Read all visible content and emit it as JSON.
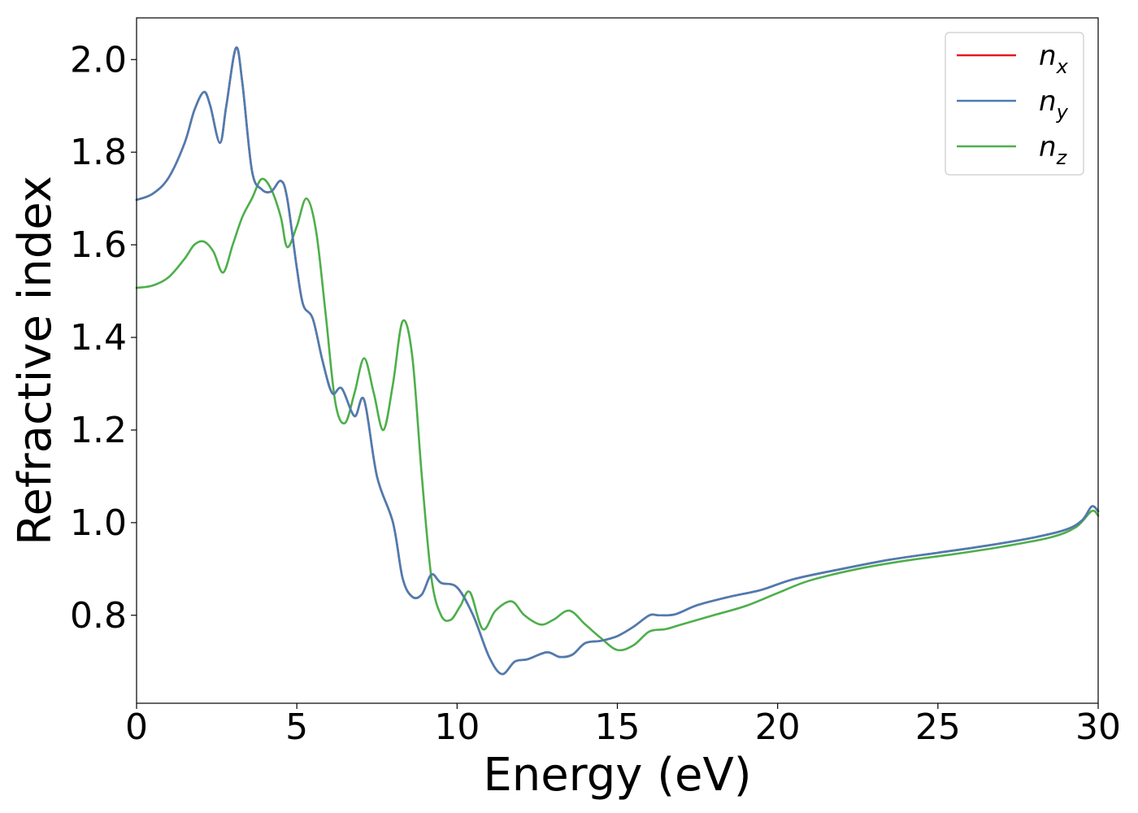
{
  "chart_data": {
    "type": "line",
    "xlabel": "Energy (eV)",
    "ylabel": "Refractive index",
    "xlim": [
      0,
      30
    ],
    "ylim": [
      0.61,
      2.09
    ],
    "xticks": [
      0,
      5,
      10,
      15,
      20,
      25,
      30
    ],
    "yticks": [
      0.8,
      1.0,
      1.2,
      1.4,
      1.6,
      1.8,
      2.0
    ],
    "xtick_labels": [
      "0",
      "5",
      "10",
      "15",
      "20",
      "25",
      "30"
    ],
    "ytick_labels": [
      "0.8",
      "1.0",
      "1.2",
      "1.4",
      "1.6",
      "1.8",
      "2.0"
    ],
    "grid": false,
    "legend_position": "top-right",
    "series": [
      {
        "name": "n_x",
        "label_base": "n",
        "label_sub": "x",
        "color": "#e41a1c",
        "x": [
          0,
          0.5,
          1,
          1.5,
          1.8,
          2.1,
          2.3,
          2.6,
          2.8,
          3.1,
          3.3,
          3.6,
          3.9,
          4.2,
          4.5,
          4.7,
          5.0,
          5.2,
          5.5,
          5.8,
          6.1,
          6.4,
          6.8,
          7.1,
          7.5,
          8.0,
          8.3,
          8.6,
          8.9,
          9.2,
          9.5,
          10.0,
          10.5,
          11.0,
          11.4,
          11.8,
          12.2,
          12.8,
          13.2,
          13.6,
          14.0,
          14.5,
          15.0,
          15.5,
          16.0,
          16.3,
          16.8,
          17.5,
          18.5,
          19.5,
          20.5,
          22.0,
          23.5,
          25.0,
          26.5,
          28.0,
          29.0,
          29.5,
          29.8,
          30.0
        ],
        "y": [
          1.697,
          1.71,
          1.745,
          1.82,
          1.89,
          1.93,
          1.9,
          1.82,
          1.9,
          2.025,
          1.95,
          1.76,
          1.72,
          1.715,
          1.738,
          1.7,
          1.55,
          1.47,
          1.44,
          1.35,
          1.28,
          1.29,
          1.23,
          1.265,
          1.1,
          1.0,
          0.88,
          0.84,
          0.845,
          0.888,
          0.87,
          0.86,
          0.8,
          0.71,
          0.673,
          0.7,
          0.705,
          0.72,
          0.71,
          0.715,
          0.74,
          0.745,
          0.755,
          0.775,
          0.8,
          0.8,
          0.802,
          0.822,
          0.84,
          0.855,
          0.878,
          0.9,
          0.92,
          0.935,
          0.95,
          0.968,
          0.985,
          1.005,
          1.035,
          1.025
        ]
      },
      {
        "name": "n_y",
        "label_base": "n",
        "label_sub": "y",
        "color": "#4a7db3",
        "x": [
          0,
          0.5,
          1,
          1.5,
          1.8,
          2.1,
          2.3,
          2.6,
          2.8,
          3.1,
          3.3,
          3.6,
          3.9,
          4.2,
          4.5,
          4.7,
          5.0,
          5.2,
          5.5,
          5.8,
          6.1,
          6.4,
          6.8,
          7.1,
          7.5,
          8.0,
          8.3,
          8.6,
          8.9,
          9.2,
          9.5,
          10.0,
          10.5,
          11.0,
          11.4,
          11.8,
          12.2,
          12.8,
          13.2,
          13.6,
          14.0,
          14.5,
          15.0,
          15.5,
          16.0,
          16.3,
          16.8,
          17.5,
          18.5,
          19.5,
          20.5,
          22.0,
          23.5,
          25.0,
          26.5,
          28.0,
          29.0,
          29.5,
          29.8,
          30.0
        ],
        "y": [
          1.697,
          1.71,
          1.745,
          1.82,
          1.89,
          1.93,
          1.9,
          1.82,
          1.9,
          2.025,
          1.95,
          1.76,
          1.72,
          1.715,
          1.738,
          1.7,
          1.55,
          1.47,
          1.44,
          1.35,
          1.28,
          1.29,
          1.23,
          1.265,
          1.1,
          1.0,
          0.88,
          0.84,
          0.845,
          0.888,
          0.87,
          0.86,
          0.8,
          0.71,
          0.673,
          0.7,
          0.705,
          0.72,
          0.71,
          0.715,
          0.74,
          0.745,
          0.755,
          0.775,
          0.8,
          0.8,
          0.802,
          0.822,
          0.84,
          0.855,
          0.878,
          0.9,
          0.92,
          0.935,
          0.95,
          0.968,
          0.985,
          1.005,
          1.035,
          1.025
        ]
      },
      {
        "name": "n_z",
        "label_base": "n",
        "label_sub": "z",
        "color": "#4daf4a",
        "x": [
          0,
          0.5,
          1,
          1.5,
          1.8,
          2.1,
          2.4,
          2.7,
          3.0,
          3.3,
          3.6,
          3.9,
          4.2,
          4.5,
          4.7,
          5.0,
          5.3,
          5.6,
          5.9,
          6.2,
          6.5,
          6.8,
          7.1,
          7.4,
          7.7,
          8.0,
          8.3,
          8.6,
          8.9,
          9.2,
          9.5,
          9.8,
          10.1,
          10.4,
          10.8,
          11.2,
          11.7,
          12.1,
          12.6,
          13.0,
          13.5,
          14.0,
          14.5,
          15.0,
          15.5,
          16.0,
          16.5,
          17.0,
          18.0,
          19.0,
          20.0,
          21.0,
          22.5,
          24.0,
          25.5,
          27.0,
          28.5,
          29.3,
          29.8,
          30.0
        ],
        "y": [
          1.507,
          1.512,
          1.53,
          1.57,
          1.6,
          1.607,
          1.585,
          1.54,
          1.6,
          1.66,
          1.7,
          1.742,
          1.72,
          1.66,
          1.595,
          1.64,
          1.7,
          1.63,
          1.45,
          1.26,
          1.215,
          1.28,
          1.355,
          1.28,
          1.2,
          1.3,
          1.435,
          1.36,
          1.1,
          0.88,
          0.8,
          0.79,
          0.82,
          0.85,
          0.77,
          0.81,
          0.83,
          0.8,
          0.78,
          0.79,
          0.81,
          0.78,
          0.75,
          0.725,
          0.735,
          0.765,
          0.77,
          0.78,
          0.8,
          0.82,
          0.848,
          0.875,
          0.9,
          0.918,
          0.932,
          0.948,
          0.968,
          0.99,
          1.025,
          1.015
        ]
      }
    ]
  }
}
